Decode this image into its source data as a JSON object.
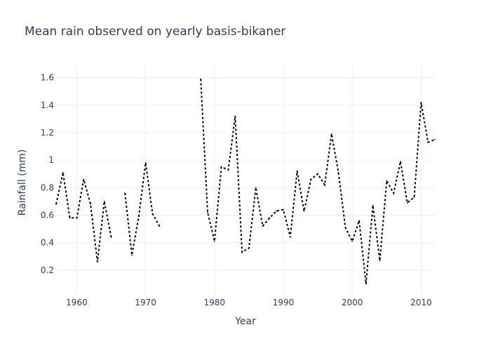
{
  "chart_data": {
    "type": "line",
    "title": "Mean rain observed on yearly basis-bikaner",
    "xlabel": "Year",
    "ylabel": "Rainfall (mm)",
    "xlim": [
      1957,
      2012
    ],
    "ylim": [
      0.02,
      1.68
    ],
    "xticks": [
      1960,
      1970,
      1980,
      1990,
      2000,
      2010
    ],
    "yticks": [
      0.2,
      0.4,
      0.6,
      0.8,
      1,
      1.2,
      1.4,
      1.6
    ],
    "grid": true,
    "legend": "none",
    "line_color": "#000000",
    "line_style": "dotted",
    "series": [
      {
        "x": [
          1957,
          1958,
          1959,
          1960,
          1961,
          1962,
          1963,
          1964,
          1965,
          1966,
          1967,
          1968,
          1969,
          1970,
          1971,
          1972,
          1973,
          1974,
          1975,
          1976,
          1977,
          1978,
          1979,
          1980,
          1981,
          1982,
          1983,
          1984,
          1985,
          1986,
          1987,
          1988,
          1989,
          1990,
          1991,
          1992,
          1993,
          1994,
          1995,
          1996,
          1997,
          1998,
          1999,
          2000,
          2001,
          2002,
          2003,
          2004,
          2005,
          2006,
          2007,
          2008,
          2009,
          2010,
          2011,
          2012
        ],
        "y": [
          0.68,
          0.91,
          0.58,
          0.58,
          0.86,
          0.68,
          0.26,
          0.7,
          0.44,
          null,
          0.76,
          0.31,
          0.59,
          0.98,
          0.61,
          0.52,
          null,
          null,
          null,
          null,
          null,
          1.59,
          0.62,
          0.41,
          0.95,
          0.93,
          1.32,
          0.33,
          0.36,
          0.8,
          0.52,
          0.58,
          0.63,
          0.64,
          0.44,
          0.92,
          0.63,
          0.86,
          0.9,
          0.82,
          1.19,
          0.91,
          0.51,
          0.41,
          0.56,
          0.1,
          0.67,
          0.27,
          0.85,
          0.76,
          0.99,
          0.69,
          0.73,
          1.42,
          1.13,
          1.15
        ]
      }
    ]
  }
}
